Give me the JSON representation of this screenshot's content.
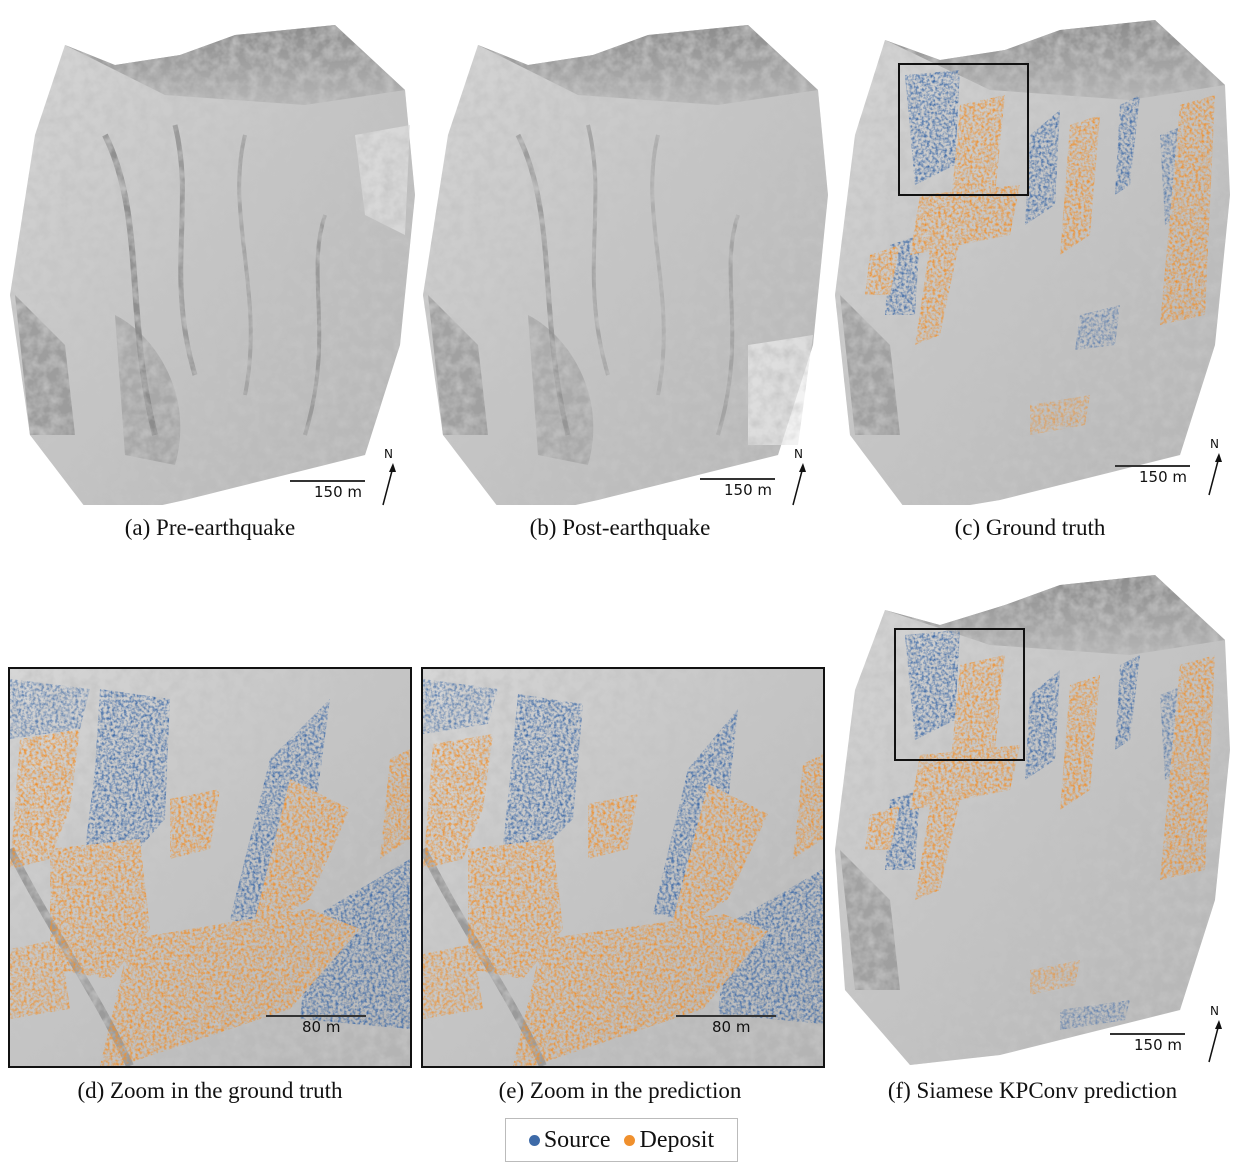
{
  "colors": {
    "source": "#3d6aa8",
    "deposit": "#f0902d",
    "terrain": "#c9c9c9"
  },
  "panels": {
    "a": {
      "caption": "(a) Pre-earthquake",
      "scale": "150 m",
      "north": "N"
    },
    "b": {
      "caption": "(b) Post-earthquake",
      "scale": "150 m",
      "north": "N"
    },
    "c": {
      "caption": "(c) Ground truth",
      "scale": "150 m",
      "north": "N"
    },
    "d": {
      "caption": "(d) Zoom in the ground truth",
      "scale": "80 m"
    },
    "e": {
      "caption": "(e) Zoom in the prediction",
      "scale": "80 m"
    },
    "f": {
      "caption": "(f) Siamese KPConv prediction",
      "scale": "150 m",
      "north": "N"
    }
  },
  "legend": {
    "source_label": "Source",
    "deposit_label": "Deposit"
  }
}
